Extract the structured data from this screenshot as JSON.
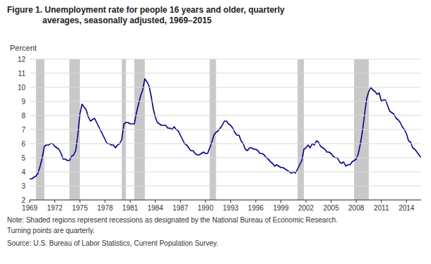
{
  "chart_data": {
    "type": "line",
    "title": "Figure 1. Unemployment rate for people 16 years and older, quarterly\naverages, seasonally adjusted, 1969–2015",
    "ylabel": "Percent",
    "notes": [
      "Note: Shaded regions represent recessions as designated by the National Bureau of Economic Research.",
      "Turning points are quarterly."
    ],
    "source": "Source: U.S. Bureau of Labor Statistics, Current Population Survey.",
    "color": "#00008B",
    "grid": true,
    "xlim": [
      1969.0,
      2015.75
    ],
    "ylim": [
      2,
      12
    ],
    "yticks": [
      2,
      3,
      4,
      5,
      6,
      7,
      8,
      9,
      10,
      11,
      12
    ],
    "xticks": [
      1969,
      1972,
      1975,
      1978,
      1981,
      1984,
      1987,
      1990,
      1993,
      1996,
      1999,
      2002,
      2005,
      2008,
      2011,
      2014
    ],
    "recessions": {
      "color": "#C8C8C8",
      "ranges": [
        [
          1969.75,
          1970.75
        ],
        [
          1973.75,
          1975.0
        ],
        [
          1980.0,
          1980.5
        ],
        [
          1981.5,
          1982.75
        ],
        [
          1990.5,
          1991.25
        ],
        [
          2001.0,
          2001.75
        ],
        [
          2007.75,
          2009.5
        ]
      ]
    },
    "x": [
      1969.0,
      1969.25,
      1969.5,
      1969.75,
      1970.0,
      1970.25,
      1970.5,
      1970.75,
      1971.0,
      1971.25,
      1971.5,
      1971.75,
      1972.0,
      1972.25,
      1972.5,
      1972.75,
      1973.0,
      1973.25,
      1973.5,
      1973.75,
      1974.0,
      1974.25,
      1974.5,
      1974.75,
      1975.0,
      1975.25,
      1975.5,
      1975.75,
      1976.0,
      1976.25,
      1976.5,
      1976.75,
      1977.0,
      1977.25,
      1977.5,
      1977.75,
      1978.0,
      1978.25,
      1978.5,
      1978.75,
      1979.0,
      1979.25,
      1979.5,
      1979.75,
      1980.0,
      1980.25,
      1980.5,
      1980.75,
      1981.0,
      1981.25,
      1981.5,
      1981.75,
      1982.0,
      1982.25,
      1982.5,
      1982.75,
      1983.0,
      1983.25,
      1983.5,
      1983.75,
      1984.0,
      1984.25,
      1984.5,
      1984.75,
      1985.0,
      1985.25,
      1985.5,
      1985.75,
      1986.0,
      1986.25,
      1986.5,
      1986.75,
      1987.0,
      1987.25,
      1987.5,
      1987.75,
      1988.0,
      1988.25,
      1988.5,
      1988.75,
      1989.0,
      1989.25,
      1989.5,
      1989.75,
      1990.0,
      1990.25,
      1990.5,
      1990.75,
      1991.0,
      1991.25,
      1991.5,
      1991.75,
      1992.0,
      1992.25,
      1992.5,
      1992.75,
      1993.0,
      1993.25,
      1993.5,
      1993.75,
      1994.0,
      1994.25,
      1994.5,
      1994.75,
      1995.0,
      1995.25,
      1995.5,
      1995.75,
      1996.0,
      1996.25,
      1996.5,
      1996.75,
      1997.0,
      1997.25,
      1997.5,
      1997.75,
      1998.0,
      1998.25,
      1998.5,
      1998.75,
      1999.0,
      1999.25,
      1999.5,
      1999.75,
      2000.0,
      2000.25,
      2000.5,
      2000.75,
      2001.0,
      2001.25,
      2001.5,
      2001.75,
      2002.0,
      2002.25,
      2002.5,
      2002.75,
      2003.0,
      2003.25,
      2003.5,
      2003.75,
      2004.0,
      2004.25,
      2004.5,
      2004.75,
      2005.0,
      2005.25,
      2005.5,
      2005.75,
      2006.0,
      2006.25,
      2006.5,
      2006.75,
      2007.0,
      2007.25,
      2007.5,
      2007.75,
      2008.0,
      2008.25,
      2008.5,
      2008.75,
      2009.0,
      2009.25,
      2009.5,
      2009.75,
      2010.0,
      2010.25,
      2010.5,
      2010.75,
      2011.0,
      2011.25,
      2011.5,
      2011.75,
      2012.0,
      2012.25,
      2012.5,
      2012.75,
      2013.0,
      2013.25,
      2013.5,
      2013.75,
      2014.0,
      2014.25,
      2014.5,
      2014.75,
      2015.0,
      2015.25,
      2015.5,
      2015.75
    ],
    "values": [
      3.5,
      3.5,
      3.6,
      3.7,
      3.9,
      4.4,
      5.0,
      5.8,
      5.9,
      5.9,
      6.0,
      6.0,
      5.8,
      5.7,
      5.6,
      5.3,
      4.9,
      4.9,
      4.8,
      4.8,
      5.1,
      5.2,
      5.5,
      6.6,
      8.1,
      8.8,
      8.6,
      8.4,
      7.9,
      7.6,
      7.7,
      7.8,
      7.5,
      7.2,
      6.9,
      6.6,
      6.3,
      6.0,
      6.0,
      5.9,
      5.9,
      5.7,
      5.9,
      6.0,
      6.3,
      7.4,
      7.5,
      7.5,
      7.4,
      7.4,
      7.4,
      8.2,
      8.8,
      9.4,
      9.8,
      10.6,
      10.4,
      10.1,
      9.4,
      8.5,
      7.9,
      7.5,
      7.4,
      7.3,
      7.3,
      7.3,
      7.1,
      7.1,
      7.0,
      7.2,
      7.0,
      6.9,
      6.6,
      6.3,
      6.0,
      5.9,
      5.7,
      5.5,
      5.5,
      5.3,
      5.2,
      5.2,
      5.3,
      5.4,
      5.3,
      5.3,
      5.7,
      6.1,
      6.6,
      6.8,
      6.9,
      7.1,
      7.3,
      7.6,
      7.6,
      7.4,
      7.3,
      7.1,
      6.8,
      6.6,
      6.6,
      6.2,
      6.0,
      5.6,
      5.5,
      5.7,
      5.7,
      5.6,
      5.6,
      5.5,
      5.3,
      5.3,
      5.2,
      5.0,
      4.9,
      4.7,
      4.6,
      4.4,
      4.5,
      4.4,
      4.3,
      4.3,
      4.2,
      4.1,
      4.0,
      3.9,
      4.0,
      3.9,
      4.2,
      4.5,
      4.8,
      5.6,
      5.7,
      5.9,
      5.7,
      6.0,
      5.9,
      6.2,
      6.1,
      5.8,
      5.7,
      5.6,
      5.4,
      5.4,
      5.3,
      5.1,
      5.0,
      5.0,
      4.7,
      4.6,
      4.7,
      4.4,
      4.5,
      4.5,
      4.7,
      4.8,
      4.9,
      5.3,
      6.0,
      6.9,
      8.1,
      9.2,
      9.7,
      10.0,
      9.8,
      9.7,
      9.5,
      9.6,
      9.0,
      9.1,
      9.1,
      8.7,
      8.3,
      8.2,
      8.1,
      7.8,
      7.7,
      7.5,
      7.2,
      7.0,
      6.7,
      6.2,
      6.1,
      5.7,
      5.6,
      5.4,
      5.2,
      5.0
    ]
  }
}
